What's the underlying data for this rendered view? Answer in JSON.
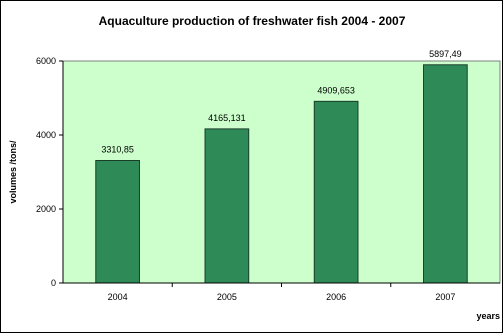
{
  "chart_data": {
    "type": "bar",
    "title": "Aquaculture production of freshwater fish 2004 - 2007",
    "xlabel": "years",
    "ylabel": "volumes /tons/",
    "categories": [
      "2004",
      "2005",
      "2006",
      "2007"
    ],
    "values": [
      3310.85,
      4165.131,
      4909.653,
      5897.49
    ],
    "data_labels": [
      "3310,85",
      "4165,131",
      "4909,653",
      "5897,49"
    ],
    "yticks": [
      "0",
      "2000",
      "4000",
      "6000"
    ],
    "ylim": [
      0,
      6000
    ],
    "grid": false,
    "legend": "none",
    "colors": {
      "bar": "#2e8b57",
      "bar_stroke": "#1a3d2a",
      "plot_background": "#ccffcc"
    }
  }
}
